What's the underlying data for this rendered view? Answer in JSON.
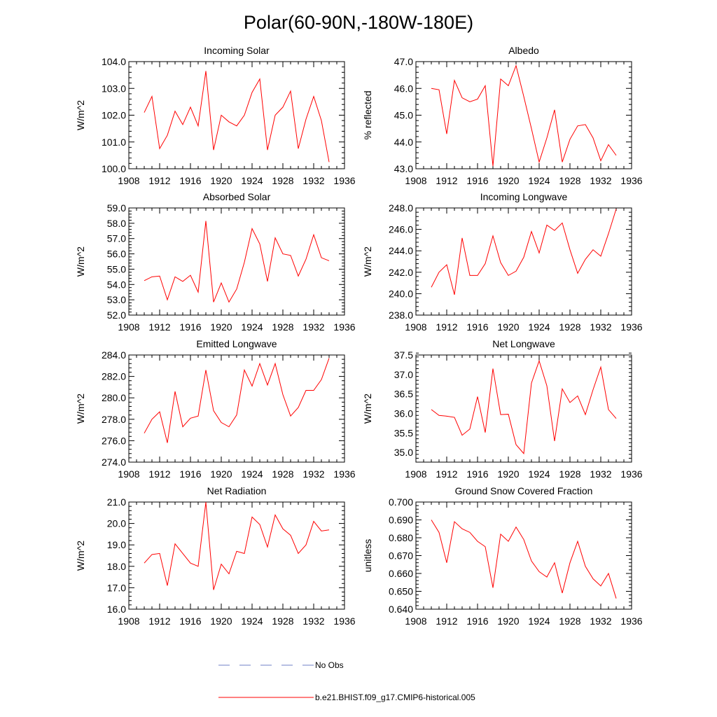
{
  "figure": {
    "title": "Polar(60-90N,-180W-180E)",
    "series_color": "#ff0000",
    "obs_color": "#6f7fc7"
  },
  "legend": {
    "obs_label": "No Obs",
    "model_label": "b.e21.BHIST.f09_g17.CMIP6-historical.005"
  },
  "chart_data": [
    {
      "type": "line",
      "title": "Incoming Solar",
      "ylabel": "W/m^2",
      "xlim": [
        1908,
        1936
      ],
      "xticks": [
        1908,
        1912,
        1916,
        1920,
        1924,
        1928,
        1932,
        1936
      ],
      "xtick_labels": [
        "1908",
        "1912",
        "1916",
        "1920",
        "1924",
        "1928",
        "1932",
        "1936"
      ],
      "ylim": [
        100.0,
        104.0
      ],
      "yticks": [
        100.0,
        101.0,
        102.0,
        103.0,
        104.0
      ],
      "ytick_labels": [
        "100.0",
        "101.0",
        "102.0",
        "103.0",
        "104.0"
      ],
      "x": [
        1910,
        1911,
        1912,
        1913,
        1914,
        1915,
        1916,
        1917,
        1918,
        1919,
        1920,
        1921,
        1922,
        1923,
        1924,
        1925,
        1926,
        1927,
        1928,
        1929,
        1930,
        1931,
        1932,
        1933,
        1934
      ],
      "series": [
        {
          "name": "b.e21.BHIST.f09_g17.CMIP6-historical.005",
          "values": [
            102.1,
            102.7,
            100.75,
            101.25,
            102.15,
            101.65,
            102.3,
            101.6,
            103.65,
            100.7,
            102.0,
            101.75,
            101.6,
            102.0,
            102.85,
            103.35,
            100.7,
            102.0,
            102.3,
            102.9,
            100.75,
            101.85,
            102.7,
            101.8,
            100.25
          ]
        }
      ]
    },
    {
      "type": "line",
      "title": "Albedo",
      "ylabel": "% reflected",
      "xlim": [
        1908,
        1936
      ],
      "xticks": [
        1908,
        1912,
        1916,
        1920,
        1924,
        1928,
        1932,
        1936
      ],
      "xtick_labels": [
        "1908",
        "1912",
        "1916",
        "1920",
        "1924",
        "1928",
        "1932",
        "1936"
      ],
      "ylim": [
        43.0,
        47.0
      ],
      "yticks": [
        43.0,
        44.0,
        45.0,
        46.0,
        47.0
      ],
      "ytick_labels": [
        "43.0",
        "44.0",
        "45.0",
        "46.0",
        "47.0"
      ],
      "x": [
        1910,
        1911,
        1912,
        1913,
        1914,
        1915,
        1916,
        1917,
        1918,
        1919,
        1920,
        1921,
        1922,
        1923,
        1924,
        1925,
        1926,
        1927,
        1928,
        1929,
        1930,
        1931,
        1932,
        1933,
        1934
      ],
      "series": [
        {
          "name": "b.e21.BHIST.f09_g17.CMIP6-historical.005",
          "values": [
            46.0,
            45.95,
            44.3,
            46.3,
            45.65,
            45.5,
            45.6,
            46.1,
            43.1,
            46.35,
            46.1,
            46.85,
            45.7,
            44.5,
            43.25,
            44.15,
            45.2,
            43.25,
            44.1,
            44.6,
            44.65,
            44.15,
            43.3,
            43.9,
            43.5
          ]
        }
      ]
    },
    {
      "type": "line",
      "title": "Absorbed Solar",
      "ylabel": "W/m^2",
      "xlim": [
        1908,
        1936
      ],
      "xticks": [
        1908,
        1912,
        1916,
        1920,
        1924,
        1928,
        1932,
        1936
      ],
      "xtick_labels": [
        "1908",
        "1912",
        "1916",
        "1920",
        "1924",
        "1928",
        "1932",
        "1936"
      ],
      "ylim": [
        52.0,
        59.0
      ],
      "yticks": [
        52.0,
        53.0,
        54.0,
        55.0,
        56.0,
        57.0,
        58.0,
        59.0
      ],
      "ytick_labels": [
        "52.0",
        "53.0",
        "54.0",
        "55.0",
        "56.0",
        "57.0",
        "58.0",
        "59.0"
      ],
      "x": [
        1910,
        1911,
        1912,
        1913,
        1914,
        1915,
        1916,
        1917,
        1918,
        1919,
        1920,
        1921,
        1922,
        1923,
        1924,
        1925,
        1926,
        1927,
        1928,
        1929,
        1930,
        1931,
        1932,
        1933,
        1934
      ],
      "series": [
        {
          "name": "b.e21.BHIST.f09_g17.CMIP6-historical.005",
          "values": [
            54.25,
            54.5,
            54.55,
            53.0,
            54.5,
            54.2,
            54.6,
            53.5,
            58.15,
            52.85,
            54.1,
            52.85,
            53.7,
            55.45,
            57.65,
            56.65,
            54.2,
            57.05,
            56.0,
            55.9,
            54.55,
            55.65,
            57.25,
            55.75,
            55.55
          ]
        }
      ]
    },
    {
      "type": "line",
      "title": "Incoming Longwave",
      "ylabel": "W/m^2",
      "xlim": [
        1908,
        1936
      ],
      "xticks": [
        1908,
        1912,
        1916,
        1920,
        1924,
        1928,
        1932,
        1936
      ],
      "xtick_labels": [
        "1908",
        "1912",
        "1916",
        "1920",
        "1924",
        "1928",
        "1932",
        "1936"
      ],
      "ylim": [
        238.0,
        248.0
      ],
      "yticks": [
        238.0,
        240.0,
        242.0,
        244.0,
        246.0,
        248.0
      ],
      "ytick_labels": [
        "238.0",
        "240.0",
        "242.0",
        "244.0",
        "246.0",
        "248.0"
      ],
      "x": [
        1910,
        1911,
        1912,
        1913,
        1914,
        1915,
        1916,
        1917,
        1918,
        1919,
        1920,
        1921,
        1922,
        1923,
        1924,
        1925,
        1926,
        1927,
        1928,
        1929,
        1930,
        1931,
        1932,
        1933,
        1934
      ],
      "series": [
        {
          "name": "b.e21.BHIST.f09_g17.CMIP6-historical.005",
          "values": [
            240.6,
            242.0,
            242.7,
            239.9,
            245.2,
            241.7,
            241.7,
            242.8,
            245.4,
            242.9,
            241.7,
            242.1,
            243.4,
            245.8,
            243.8,
            246.4,
            245.9,
            246.6,
            244.1,
            241.9,
            243.2,
            244.1,
            243.5,
            245.6,
            247.9
          ]
        }
      ]
    },
    {
      "type": "line",
      "title": "Emitted Longwave",
      "ylabel": "W/m^2",
      "xlim": [
        1908,
        1936
      ],
      "xticks": [
        1908,
        1912,
        1916,
        1920,
        1924,
        1928,
        1932,
        1936
      ],
      "xtick_labels": [
        "1908",
        "1912",
        "1916",
        "1920",
        "1924",
        "1928",
        "1932",
        "1936"
      ],
      "ylim": [
        274.0,
        284.0
      ],
      "yticks": [
        274.0,
        276.0,
        278.0,
        280.0,
        282.0,
        284.0
      ],
      "ytick_labels": [
        "274.0",
        "276.0",
        "278.0",
        "280.0",
        "282.0",
        "284.0"
      ],
      "x": [
        1910,
        1911,
        1912,
        1913,
        1914,
        1915,
        1916,
        1917,
        1918,
        1919,
        1920,
        1921,
        1922,
        1923,
        1924,
        1925,
        1926,
        1927,
        1928,
        1929,
        1930,
        1931,
        1932,
        1933,
        1934
      ],
      "series": [
        {
          "name": "b.e21.BHIST.f09_g17.CMIP6-historical.005",
          "values": [
            276.7,
            278.0,
            278.7,
            275.8,
            280.6,
            277.3,
            278.1,
            278.3,
            282.6,
            278.8,
            277.7,
            277.3,
            278.4,
            282.6,
            281.1,
            283.2,
            281.2,
            283.2,
            280.3,
            278.3,
            279.1,
            280.7,
            280.7,
            281.7,
            283.7
          ]
        }
      ]
    },
    {
      "type": "line",
      "title": "Net Longwave",
      "ylabel": "W/m^2",
      "xlim": [
        1908,
        1936
      ],
      "xticks": [
        1908,
        1912,
        1916,
        1920,
        1924,
        1928,
        1932,
        1936
      ],
      "xtick_labels": [
        "1908",
        "1912",
        "1916",
        "1920",
        "1924",
        "1928",
        "1932",
        "1936"
      ],
      "ylim": [
        34.75,
        37.5
      ],
      "yticks": [
        35.0,
        35.5,
        36.0,
        36.5,
        37.0,
        37.5
      ],
      "ytick_labels": [
        "35.0",
        "35.5",
        "36.0",
        "36.5",
        "37.0",
        "37.5"
      ],
      "x": [
        1910,
        1911,
        1912,
        1913,
        1914,
        1915,
        1916,
        1917,
        1918,
        1919,
        1920,
        1921,
        1922,
        1923,
        1924,
        1925,
        1926,
        1927,
        1928,
        1929,
        1930,
        1931,
        1932,
        1933,
        1934
      ],
      "series": [
        {
          "name": "b.e21.BHIST.f09_g17.CMIP6-historical.005",
          "values": [
            36.1,
            35.95,
            35.93,
            35.9,
            35.44,
            35.6,
            36.43,
            35.51,
            37.15,
            35.97,
            35.98,
            35.2,
            34.97,
            36.78,
            37.35,
            36.71,
            35.29,
            36.63,
            36.28,
            36.45,
            35.97,
            36.61,
            37.19,
            36.1,
            35.87
          ]
        }
      ]
    },
    {
      "type": "line",
      "title": "Net Radiation",
      "ylabel": "W/m^2",
      "xlim": [
        1908,
        1936
      ],
      "xticks": [
        1908,
        1912,
        1916,
        1920,
        1924,
        1928,
        1932,
        1936
      ],
      "xtick_labels": [
        "1908",
        "1912",
        "1916",
        "1920",
        "1924",
        "1928",
        "1932",
        "1936"
      ],
      "ylim": [
        16.0,
        21.0
      ],
      "yticks": [
        16.0,
        17.0,
        18.0,
        19.0,
        20.0,
        21.0
      ],
      "ytick_labels": [
        "16.0",
        "17.0",
        "18.0",
        "19.0",
        "20.0",
        "21.0"
      ],
      "x": [
        1910,
        1911,
        1912,
        1913,
        1914,
        1915,
        1916,
        1917,
        1918,
        1919,
        1920,
        1921,
        1922,
        1923,
        1924,
        1925,
        1926,
        1927,
        1928,
        1929,
        1930,
        1931,
        1932,
        1933,
        1934
      ],
      "series": [
        {
          "name": "b.e21.BHIST.f09_g17.CMIP6-historical.005",
          "values": [
            18.15,
            18.55,
            18.6,
            17.1,
            19.05,
            18.6,
            18.15,
            18.0,
            21.0,
            16.9,
            18.1,
            17.65,
            18.7,
            18.6,
            20.3,
            19.95,
            18.9,
            20.4,
            19.75,
            19.45,
            18.6,
            19.0,
            20.1,
            19.65,
            19.7
          ]
        }
      ]
    },
    {
      "type": "line",
      "title": "Ground Snow Covered Fraction",
      "ylabel": "unitless",
      "xlim": [
        1908,
        1936
      ],
      "xticks": [
        1908,
        1912,
        1916,
        1920,
        1924,
        1928,
        1932,
        1936
      ],
      "xtick_labels": [
        "1908",
        "1912",
        "1916",
        "1920",
        "1924",
        "1928",
        "1932",
        "1936"
      ],
      "ylim": [
        0.64,
        0.7
      ],
      "yticks": [
        0.64,
        0.65,
        0.66,
        0.67,
        0.68,
        0.69,
        0.7
      ],
      "ytick_labels": [
        "0.640",
        "0.650",
        "0.660",
        "0.670",
        "0.680",
        "0.690",
        "0.700"
      ],
      "x": [
        1910,
        1911,
        1912,
        1913,
        1914,
        1915,
        1916,
        1917,
        1918,
        1919,
        1920,
        1921,
        1922,
        1923,
        1924,
        1925,
        1926,
        1927,
        1928,
        1929,
        1930,
        1931,
        1932,
        1933,
        1934
      ],
      "series": [
        {
          "name": "b.e21.BHIST.f09_g17.CMIP6-historical.005",
          "values": [
            0.69,
            0.683,
            0.666,
            0.689,
            0.685,
            0.683,
            0.678,
            0.675,
            0.652,
            0.682,
            0.678,
            0.686,
            0.679,
            0.667,
            0.661,
            0.658,
            0.666,
            0.649,
            0.666,
            0.678,
            0.664,
            0.657,
            0.653,
            0.66,
            0.646
          ]
        }
      ]
    }
  ]
}
